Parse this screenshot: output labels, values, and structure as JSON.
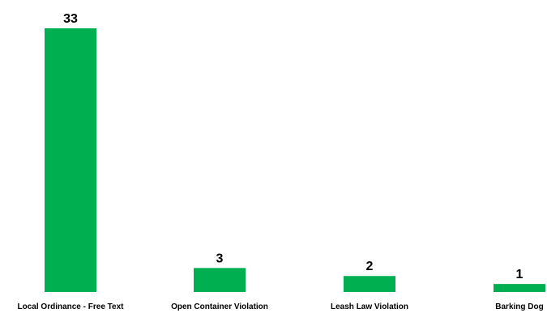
{
  "chart_data": {
    "type": "bar",
    "categories": [
      "Local Ordinance - Free Text",
      "Open Container Violation",
      "Leash Law Violation",
      "Barking Dog"
    ],
    "values": [
      33,
      3,
      2,
      1
    ],
    "title": "",
    "xlabel": "",
    "ylabel": "",
    "ylim": [
      0,
      33
    ],
    "grid": false,
    "legend": "none",
    "bar_color": "#00b050"
  }
}
